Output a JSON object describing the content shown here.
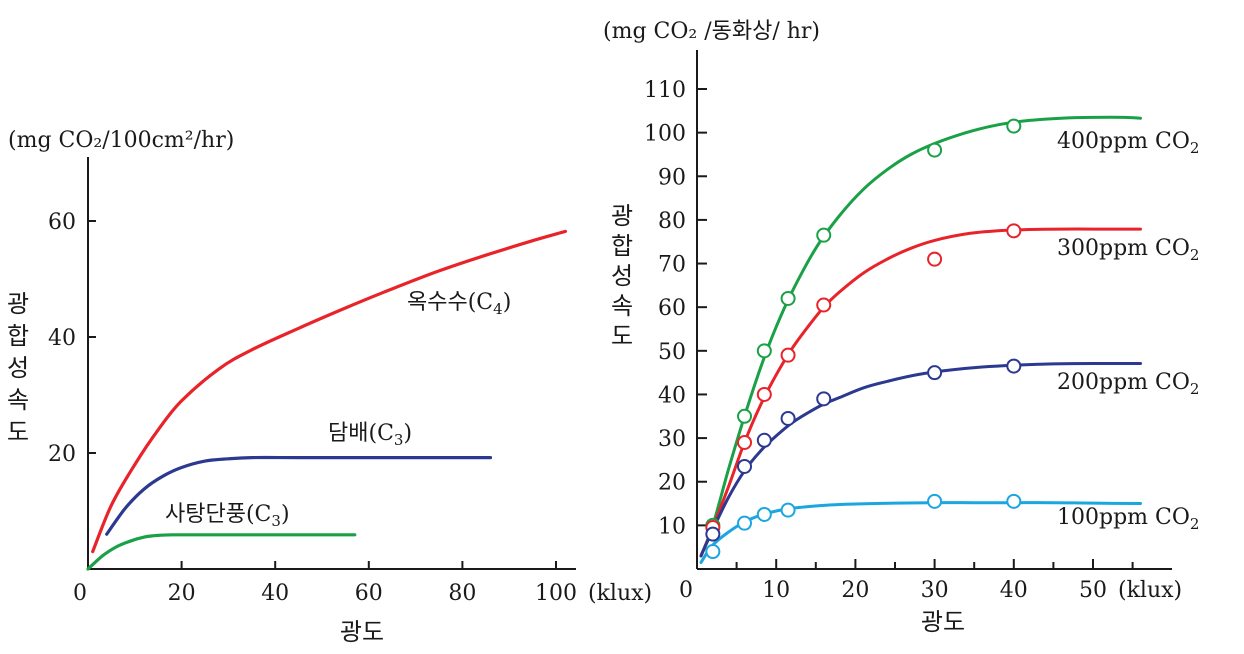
{
  "chart_data": [
    {
      "type": "line",
      "title": "",
      "unit_label": "(mg CO₂/100cm²/hr)",
      "ylabel": "광합성속도",
      "xlabel": "광도",
      "x_unit": "(klux)",
      "xlim": [
        0,
        105
      ],
      "ylim": [
        0,
        70
      ],
      "x_ticks": [
        0,
        20,
        40,
        60,
        80,
        100
      ],
      "y_ticks": [
        20,
        40,
        60
      ],
      "grid": false,
      "series": [
        {
          "name": "옥수수(C₄)",
          "color": "#e8232a",
          "x": [
            1,
            5,
            10,
            15,
            20,
            28,
            35,
            45,
            55,
            65,
            75,
            85,
            95,
            102
          ],
          "y": [
            3,
            11,
            18,
            24,
            29,
            34.5,
            37.8,
            41.5,
            45,
            48.3,
            51.4,
            54.1,
            56.6,
            58.2
          ]
        },
        {
          "name": "담배(C₃)",
          "color": "#2b3990",
          "x": [
            4,
            8,
            12,
            16,
            20,
            25,
            30,
            35,
            45,
            60,
            75,
            86
          ],
          "y": [
            6,
            10.5,
            13.8,
            16,
            17.5,
            18.6,
            19,
            19.2,
            19.2,
            19.2,
            19.2,
            19.2
          ]
        },
        {
          "name": "사탕단풍(C₃)",
          "color": "#1aa147",
          "x": [
            0,
            3,
            6,
            9,
            12,
            15,
            18,
            25,
            40,
            57
          ],
          "y": [
            0,
            2.2,
            3.8,
            4.8,
            5.5,
            5.8,
            5.9,
            5.9,
            5.9,
            5.9
          ]
        }
      ]
    },
    {
      "type": "line",
      "title": "",
      "unit_label": "(mg CO₂ /동화상/ hr)",
      "ylabel": "광합성속도",
      "xlabel": "광도",
      "x_unit": "(klux)",
      "xlim": [
        0,
        58
      ],
      "ylim": [
        0,
        115
      ],
      "x_ticks": [
        0,
        10,
        20,
        30,
        40,
        50
      ],
      "y_ticks": [
        10,
        20,
        30,
        40,
        50,
        60,
        70,
        80,
        90,
        100,
        110
      ],
      "grid": false,
      "series": [
        {
          "name": "400ppm CO₂",
          "color": "#1aa147",
          "curve_x": [
            0.5,
            2,
            4,
            6,
            8,
            10,
            12,
            15,
            18,
            21,
            24,
            27,
            30,
            34,
            38,
            42,
            46,
            50,
            54,
            56
          ],
          "curve_y": [
            3,
            10,
            23,
            35,
            46,
            55.5,
            63.5,
            73.5,
            81,
            87,
            91.5,
            95,
            97.5,
            100,
            101.8,
            102.8,
            103.3,
            103.5,
            103.5,
            103.3
          ],
          "points_x": [
            2,
            6,
            8.5,
            11.5,
            16,
            30,
            40
          ],
          "points_y": [
            10,
            35,
            50,
            62,
            76.5,
            96,
            101.5
          ]
        },
        {
          "name": "300ppm CO₂",
          "color": "#e8232a",
          "curve_x": [
            0.5,
            2,
            4,
            6,
            8,
            10,
            12,
            14,
            16,
            18,
            21,
            24,
            27,
            30,
            34,
            38,
            42,
            46,
            50,
            54,
            56
          ],
          "curve_y": [
            3,
            9.5,
            19,
            29,
            37.5,
            44.5,
            50.5,
            55.5,
            60,
            63.5,
            67.8,
            71,
            73.5,
            75.3,
            76.8,
            77.5,
            77.8,
            77.9,
            77.9,
            77.9,
            77.9
          ],
          "points_x": [
            2,
            6,
            8.5,
            11.5,
            16,
            30,
            40
          ],
          "points_y": [
            9.5,
            29,
            40,
            49,
            60.5,
            71,
            77.5
          ]
        },
        {
          "name": "200ppm CO₂",
          "color": "#2b3990",
          "curve_x": [
            0.5,
            2,
            4,
            6,
            8,
            10,
            12,
            14,
            16,
            18,
            21,
            24,
            28,
            32,
            36,
            40,
            45,
            50,
            56
          ],
          "curve_y": [
            3,
            9,
            16.5,
            22.5,
            27,
            30.5,
            33.5,
            35.8,
            37.8,
            39.3,
            41.5,
            43,
            44.6,
            45.6,
            46.3,
            46.7,
            47,
            47.1,
            47.1
          ],
          "points_x": [
            2,
            6,
            8.5,
            11.5,
            16,
            30,
            40
          ],
          "points_y": [
            8,
            23.5,
            29.5,
            34.5,
            39,
            45,
            46.5
          ]
        },
        {
          "name": "100ppm CO₂",
          "color": "#1ba6e0",
          "curve_x": [
            0.5,
            2,
            4,
            6,
            8,
            10,
            12,
            14,
            17,
            20,
            25,
            30,
            35,
            40,
            45,
            50,
            56
          ],
          "curve_y": [
            1.5,
            5.5,
            8.5,
            10.8,
            12.3,
            13.3,
            13.9,
            14.3,
            14.7,
            14.9,
            15.1,
            15.2,
            15.2,
            15.2,
            15.2,
            15.1,
            15
          ],
          "points_x": [
            2,
            6,
            8.5,
            11.5,
            30,
            40
          ],
          "points_y": [
            4,
            10.5,
            12.5,
            13.5,
            15.5,
            15.5
          ]
        }
      ]
    }
  ]
}
